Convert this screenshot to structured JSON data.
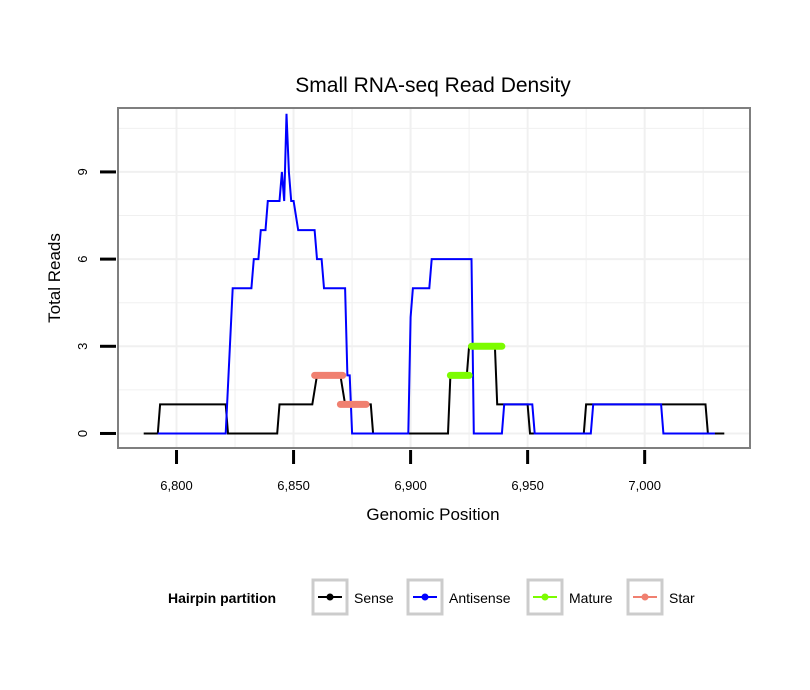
{
  "chart_data": {
    "type": "line",
    "title": "Small RNA-seq Read Density",
    "xlabel": "Genomic Position",
    "ylabel": "Total Reads",
    "xlim": [
      6775,
      7045
    ],
    "ylim": [
      -0.5,
      11.2
    ],
    "x_ticks": [
      6800,
      6850,
      6900,
      6950,
      7000
    ],
    "x_tick_labels": [
      "6,800",
      "6,850",
      "6,900",
      "6,950",
      "7,000"
    ],
    "y_ticks": [
      0,
      3,
      6,
      9
    ],
    "y_tick_labels": [
      "0",
      "3",
      "6",
      "9"
    ],
    "grid": true,
    "legend": {
      "title": "Hairpin partition",
      "position": "bottom",
      "entries": [
        "Sense",
        "Antisense",
        "Mature",
        "Star"
      ]
    },
    "series": [
      {
        "name": "Sense",
        "color": "#000000",
        "kind": "line",
        "x": [
          6786,
          6792,
          6793,
          6821,
          6822,
          6843,
          6844,
          6858,
          6860,
          6870,
          6872,
          6883,
          6884,
          6900,
          6916,
          6917,
          6924,
          6925,
          6936,
          6937,
          6950,
          6951,
          6974,
          6975,
          7026,
          7027,
          7034
        ],
        "y": [
          0,
          0,
          1,
          1,
          0,
          0,
          1,
          1,
          2,
          2,
          1,
          1,
          0,
          0,
          0,
          2,
          2,
          3,
          3,
          1,
          1,
          0,
          0,
          1,
          1,
          0,
          0
        ]
      },
      {
        "name": "Antisense",
        "color": "#0000ff",
        "kind": "line",
        "x": [
          6792,
          6821,
          6824,
          6832,
          6833,
          6835,
          6836,
          6838,
          6839,
          6844,
          6845,
          6846,
          6847,
          6848,
          6849,
          6850,
          6852,
          6859,
          6860,
          6862,
          6863,
          6865,
          6866,
          6872,
          6873,
          6874,
          6875,
          6899,
          6900,
          6901,
          6902,
          6908,
          6909,
          6926,
          6927,
          6935,
          6936,
          6939,
          6940,
          6952,
          6953,
          6977,
          6978,
          7007,
          7008,
          7030
        ],
        "y": [
          0,
          0,
          5,
          5,
          6,
          6,
          7,
          7,
          8,
          8,
          9,
          8,
          11,
          9,
          8,
          8,
          7,
          7,
          6,
          6,
          5,
          5,
          5,
          5,
          2,
          2,
          0,
          0,
          4,
          5,
          5,
          5,
          6,
          6,
          0,
          0,
          0,
          0,
          1,
          1,
          0,
          0,
          1,
          1,
          0,
          0
        ]
      },
      {
        "name": "Mature",
        "color": "#7cfc00",
        "kind": "segments",
        "segments": [
          {
            "x0": 6917,
            "x1": 6925,
            "y": 2
          },
          {
            "x0": 6926,
            "x1": 6939,
            "y": 3
          }
        ]
      },
      {
        "name": "Star",
        "color": "#f08070",
        "kind": "segments",
        "segments": [
          {
            "x0": 6859,
            "x1": 6871,
            "y": 2
          },
          {
            "x0": 6870,
            "x1": 6881,
            "y": 1
          }
        ]
      }
    ]
  }
}
